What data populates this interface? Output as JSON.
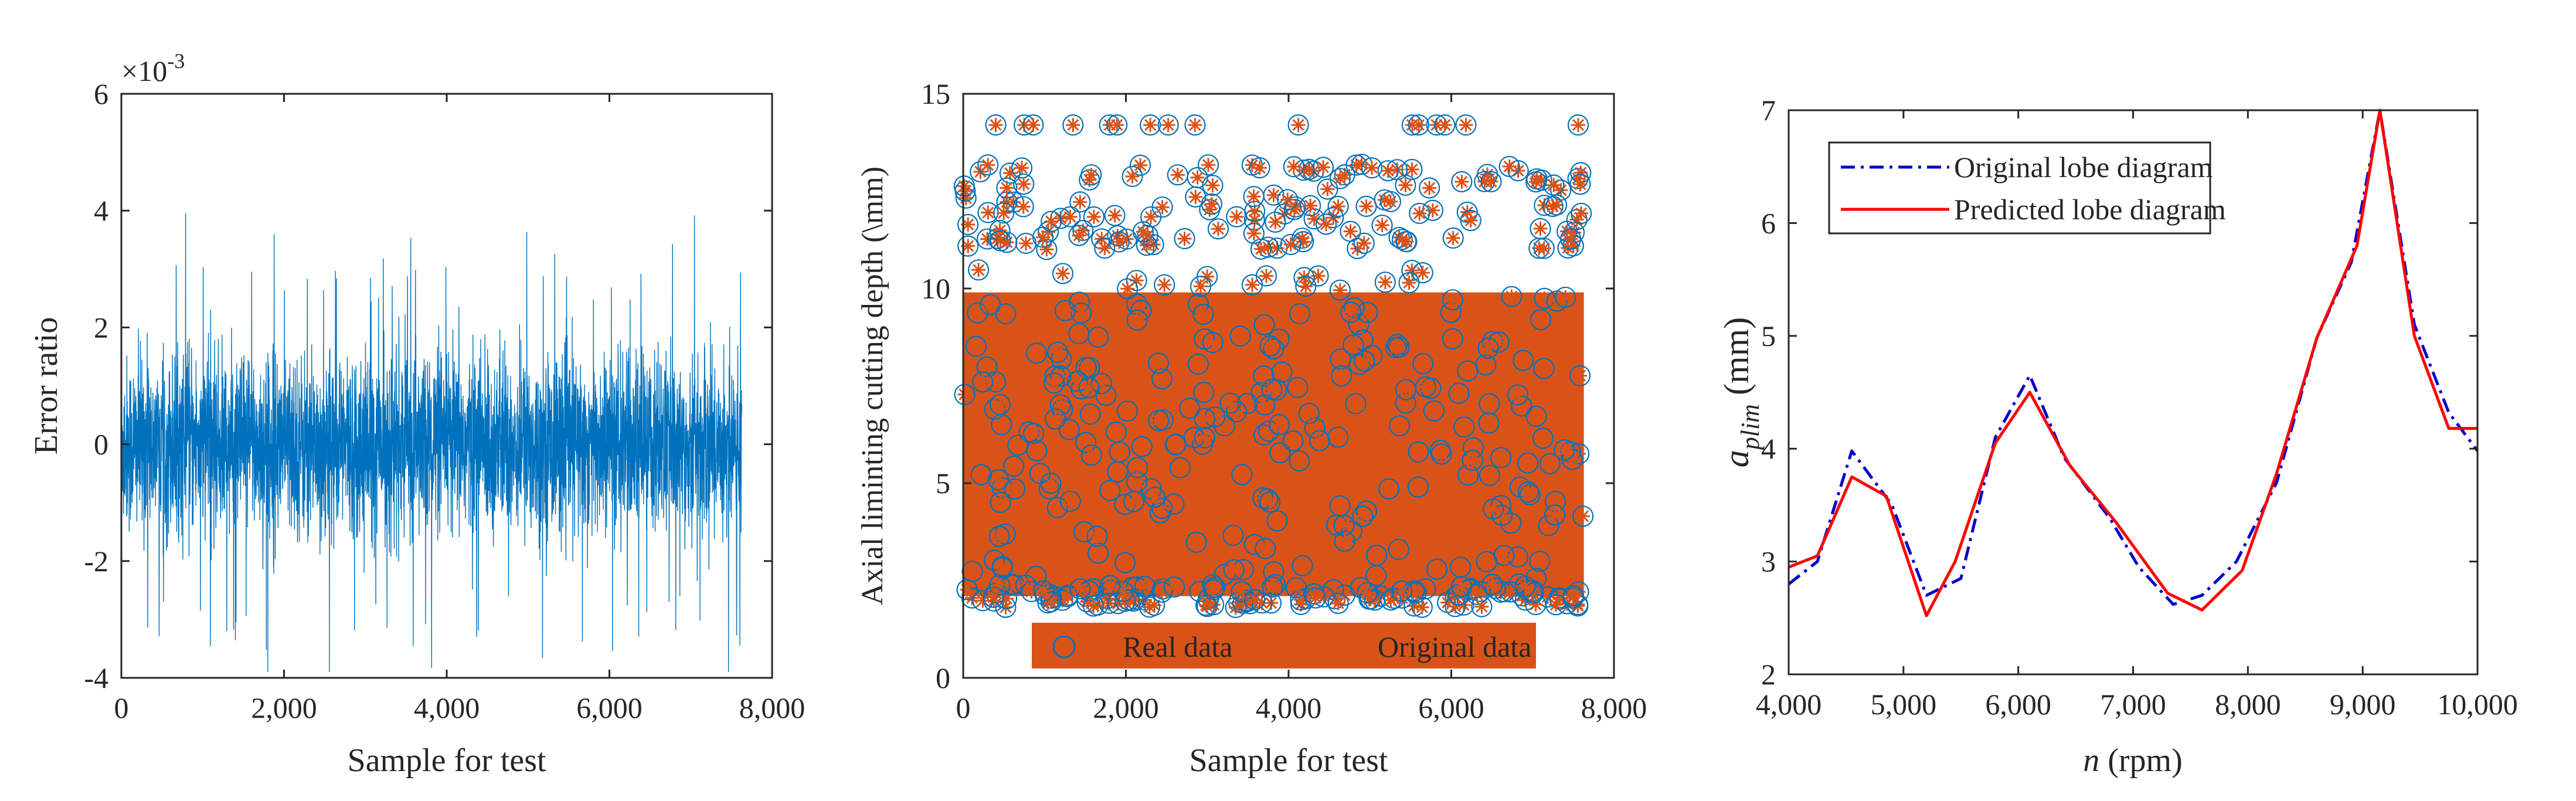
{
  "chart_data": [
    {
      "type": "line",
      "title": "",
      "xlabel": "Sample for test",
      "ylabel": "Error ratio",
      "y_exponent_label": "×10",
      "y_exponent_power": "-3",
      "xlim": [
        0,
        8000
      ],
      "ylim": [
        -4,
        6
      ],
      "x_ticks": [
        0,
        2000,
        4000,
        6000,
        8000
      ],
      "x_tick_labels": [
        "0",
        "2,000",
        "4,000",
        "6,000",
        "8,000"
      ],
      "y_ticks": [
        -4,
        -2,
        0,
        2,
        4,
        6
      ],
      "y_tick_labels": [
        "-4",
        "-2",
        "0",
        "2",
        "4",
        "6"
      ],
      "grid": false,
      "series": [
        {
          "color": "#0072BD",
          "n_samples": 7630,
          "typical_range": [
            -1.8,
            1.8
          ],
          "peak_max": 4.4,
          "peak_min": -3.9
        }
      ]
    },
    {
      "type": "scatter",
      "title": "",
      "xlabel": "Sample for test",
      "ylabel": "Axial liminting cutting depth (\\mm)",
      "xlim": [
        0,
        8000
      ],
      "ylim": [
        0,
        15
      ],
      "x_ticks": [
        0,
        2000,
        4000,
        6000,
        8000
      ],
      "x_tick_labels": [
        "0",
        "2,000",
        "4,000",
        "6,000",
        "8,000"
      ],
      "y_ticks": [
        0,
        5,
        10,
        15
      ],
      "y_tick_labels": [
        "0",
        "5",
        "10",
        "15"
      ],
      "grid": false,
      "legend_position": "bottom",
      "series": [
        {
          "name": "Real data",
          "marker": "circle",
          "color": "#0072BD"
        },
        {
          "name": "Original data",
          "marker": "asterisk",
          "color": "#D95319"
        }
      ],
      "y_bands": [
        [
          1.8,
          10.5
        ],
        [
          11.0,
          13.2
        ],
        [
          14.2,
          14.2
        ]
      ],
      "n_samples": 7630
    },
    {
      "type": "line",
      "title": "",
      "xlabel_italic": "n",
      "xlabel_rest": " (rpm)",
      "ylabel_italic": "a",
      "ylabel_sub": "plim",
      "ylabel_rest": " (mm)",
      "xlim": [
        4000,
        10000
      ],
      "ylim": [
        2,
        7
      ],
      "x_ticks": [
        4000,
        5000,
        6000,
        7000,
        8000,
        9000,
        10000
      ],
      "x_tick_labels": [
        "4,000",
        "5,000",
        "6,000",
        "7,000",
        "8,000",
        "9,000",
        "10,000"
      ],
      "y_ticks": [
        2,
        3,
        4,
        5,
        6,
        7
      ],
      "y_tick_labels": [
        "2",
        "3",
        "4",
        "5",
        "6",
        "7"
      ],
      "grid": false,
      "legend_position": "top-left",
      "series": [
        {
          "name": "Original lobe diagram",
          "color": "#0000CC",
          "style": "dash-dot",
          "x": [
            4000,
            4250,
            4550,
            4900,
            5200,
            5500,
            5800,
            6100,
            6400,
            6800,
            7050,
            7350,
            7600,
            7900,
            8250,
            8600,
            8900,
            9150,
            9450,
            9750,
            10000
          ],
          "y": [
            2.8,
            3.0,
            3.98,
            3.5,
            2.7,
            2.85,
            4.1,
            4.65,
            3.92,
            3.38,
            2.95,
            2.62,
            2.7,
            3.0,
            3.7,
            4.98,
            5.65,
            7.0,
            5.1,
            4.32,
            3.98
          ]
        },
        {
          "name": "Predicted lobe diagram",
          "color": "#FF0000",
          "style": "solid",
          "x": [
            4000,
            4250,
            4550,
            4850,
            5200,
            5450,
            5800,
            6100,
            6450,
            6850,
            7300,
            7600,
            7950,
            8250,
            8600,
            8950,
            9150,
            9450,
            9750,
            10000
          ],
          "y": [
            2.95,
            3.05,
            3.75,
            3.58,
            2.52,
            3.0,
            4.05,
            4.5,
            3.85,
            3.35,
            2.72,
            2.57,
            2.92,
            3.78,
            4.98,
            5.8,
            7.0,
            5.0,
            4.18,
            4.18
          ]
        }
      ]
    }
  ]
}
